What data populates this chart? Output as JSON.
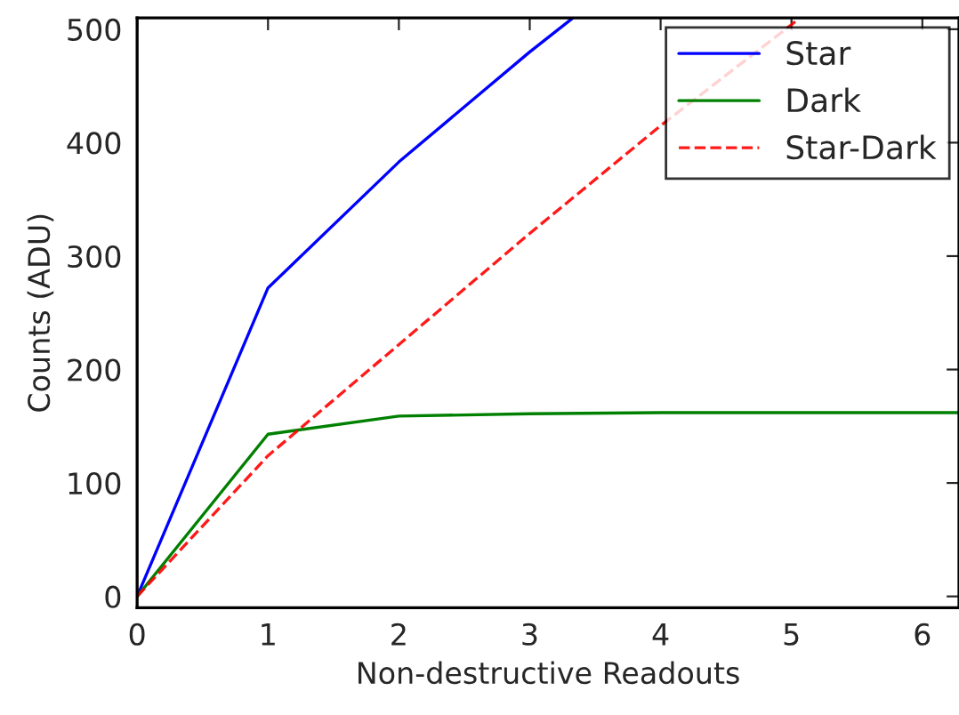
{
  "chart_data": {
    "type": "line",
    "xlabel": "Non-destructive Readouts",
    "ylabel": "Counts (ADU)",
    "xlim": [
      0,
      6.28
    ],
    "xticks": [
      0,
      1,
      2,
      3,
      4,
      5,
      6
    ],
    "ylim": [
      -10,
      510
    ],
    "yticks": [
      0,
      100,
      200,
      300,
      400,
      500
    ],
    "grid": false,
    "legend": "top right",
    "series": [
      {
        "name": "Star",
        "color": "#0000ff",
        "line_style": "solid",
        "x": [
          0,
          1,
          2,
          3,
          3.33
        ],
        "values": [
          0,
          272,
          383,
          480,
          510
        ]
      },
      {
        "name": "Dark",
        "color": "#008000",
        "line_style": "solid",
        "x": [
          0,
          1,
          2,
          3,
          4,
          5,
          6,
          6.28
        ],
        "values": [
          0,
          143,
          159,
          161,
          162,
          162,
          162,
          162
        ]
      },
      {
        "name": "Star-Dark",
        "color": "#ff0000",
        "line_style": "dashed",
        "x": [
          0,
          1,
          2,
          3,
          4,
          5,
          5.06
        ],
        "values": [
          0,
          124,
          222,
          320,
          415,
          504,
          510
        ]
      }
    ]
  }
}
